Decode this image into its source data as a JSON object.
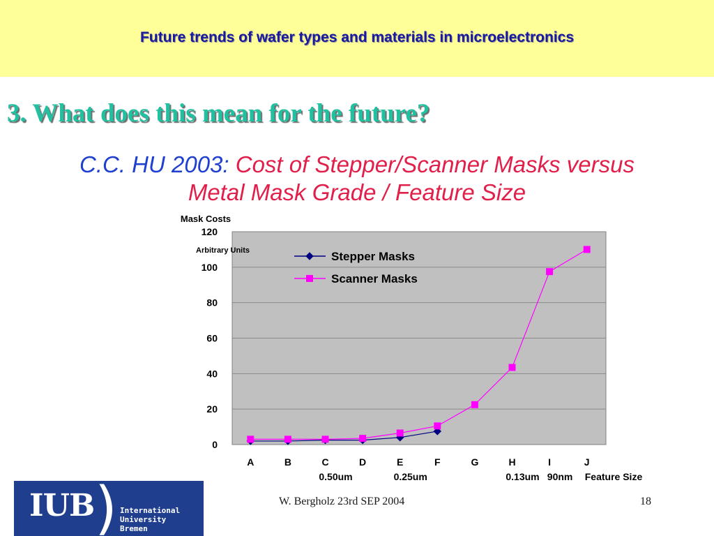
{
  "header": {
    "title": "Future trends of wafer types and materials in microelectronics"
  },
  "section": {
    "title": "3. What does this mean for the future?"
  },
  "subtitle": {
    "source": "C.C. HU 2003:",
    "line1": "Cost of Stepper/Scanner Masks versus",
    "line2": "Metal Mask Grade / Feature Size"
  },
  "footer": {
    "author": "W. Bergholz 23rd SEP 2004",
    "page": "18"
  },
  "logo": {
    "text": "IUB",
    "lines": [
      "International",
      "University",
      "Bremen"
    ]
  },
  "colors": {
    "header_bg": "#ffff99",
    "plot_bg": "#c0c0c0",
    "stepper": "#000080",
    "scanner": "#ff00ff"
  },
  "chart_data": {
    "type": "line",
    "ylabel": "Mask Costs",
    "ylabel_units": "Arbitrary Units",
    "ylim": [
      0,
      120
    ],
    "yticks": [
      0,
      20,
      40,
      60,
      80,
      100,
      120
    ],
    "grid": true,
    "legend_position": "top-center",
    "categories": [
      "A",
      "B",
      "C",
      "D",
      "E",
      "F",
      "G",
      "H",
      "I",
      "J"
    ],
    "feature_size_labels": [
      {
        "category": "C",
        "label": "0.50um"
      },
      {
        "category": "E",
        "label": "0.25um"
      },
      {
        "category": "H",
        "label": "0.13um"
      },
      {
        "category": "I",
        "label": "90nm"
      }
    ],
    "xlabel": "Feature Size",
    "series": [
      {
        "name": "Stepper Masks",
        "marker": "diamond",
        "color": "#000080",
        "values": [
          2,
          2,
          2.5,
          2.5,
          4,
          7.5,
          null,
          null,
          null,
          null
        ]
      },
      {
        "name": "Scanner Masks",
        "marker": "square",
        "color": "#ff00ff",
        "values": [
          3,
          3,
          3,
          3.5,
          6.5,
          10.5,
          22.5,
          43.5,
          97.5,
          110
        ]
      }
    ]
  }
}
